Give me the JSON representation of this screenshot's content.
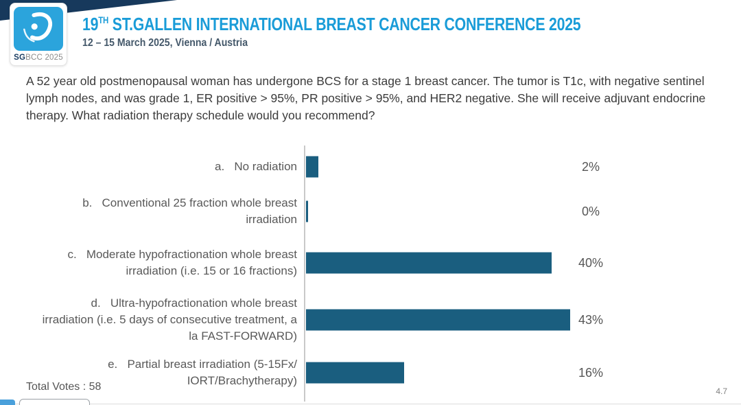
{
  "header": {
    "logo_sg": "SG",
    "logo_rest": "BCC 2025",
    "title_prefix": "19",
    "title_sup": "TH",
    "title_rest": " ST.GALLEN INTERNATIONAL BREAST CANCER CONFERENCE 2025",
    "subtitle": "12 – 15 March 2025, Vienna / Austria"
  },
  "question": "A 52 year old postmenopausal woman has undergone BCS for a stage 1 breast cancer.  The tumor is T1c, with negative sentinel lymph nodes, and was grade 1, ER positive > 95%, PR positive > 95%, and HER2 negative.  She will receive adjuvant endocrine therapy. What radiation therapy schedule would you recommend?",
  "chart_data": {
    "type": "bar",
    "orientation": "horizontal",
    "categories": [
      "a. No radiation",
      "b. Conventional 25 fraction whole breast irradiation",
      "c. Moderate hypofractionation whole breast irradiation (i.e. 15 or 16 fractions)",
      "d. Ultra-hypofractionation whole breast irradiation (i.e. 5 days of consecutive treatment, a la FAST-FORWARD)",
      "e. Partial breast irradiation (5-15Fx/ IORT/Brachytherapy)"
    ],
    "values": [
      2,
      0,
      40,
      43,
      16
    ],
    "options": [
      {
        "letter": "a.",
        "label": "No radiation",
        "value": 2,
        "value_label": "2%"
      },
      {
        "letter": "b.",
        "label": "Conventional 25 fraction whole breast irradiation",
        "value": 0,
        "value_label": "0%"
      },
      {
        "letter": "c.",
        "label": "Moderate hypofractionation whole breast irradiation (i.e. 15 or 16 fractions)",
        "value": 40,
        "value_label": "40%"
      },
      {
        "letter": "d.",
        "label": "Ultra-hypofractionation whole breast irradiation (i.e. 5 days of consecutive treatment, a la FAST-FORWARD)",
        "value": 43,
        "value_label": "43%"
      },
      {
        "letter": "e.",
        "label": "Partial breast irradiation (5-15Fx/ IORT/Brachytherapy)",
        "value": 16,
        "value_label": "16%"
      }
    ],
    "value_suffix": "%",
    "xlim": [
      0,
      45
    ],
    "title": "",
    "legend_position": "none",
    "grid": false,
    "bar_color": "#1A5E7F",
    "axis_color": "#C9C9C9"
  },
  "footer": {
    "total_votes": "Total Votes : 58",
    "slide_number": "4.7"
  },
  "colors": {
    "title_blue": "#1A9CD8",
    "corner_navy": "#17395C",
    "logo_blue": "#2BA4DC",
    "question_text": "#3B3B3B",
    "label_gray": "#595959"
  }
}
